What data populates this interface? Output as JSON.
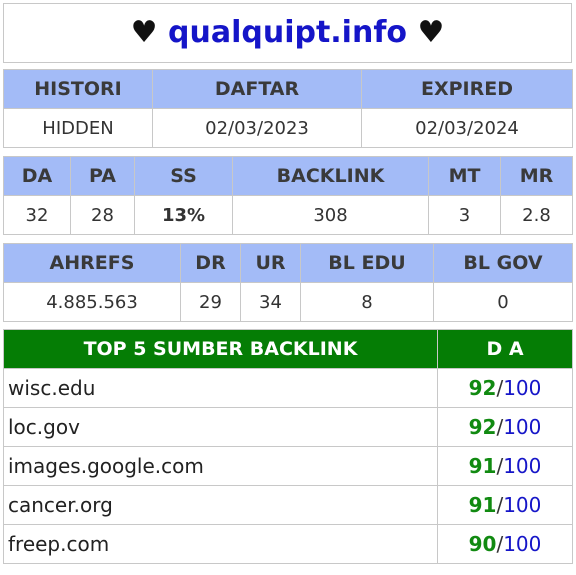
{
  "header": {
    "heart": "♥",
    "domain": "qualquipt.info"
  },
  "history": {
    "headers": [
      "HISTORI",
      "DAFTAR",
      "EXPIRED"
    ],
    "values": [
      "HIDDEN",
      "02/03/2023",
      "02/03/2024"
    ]
  },
  "metrics": {
    "headers": [
      "DA",
      "PA",
      "SS",
      "BACKLINK",
      "MT",
      "MR"
    ],
    "values": [
      "32",
      "28",
      "13%",
      "308",
      "3",
      "2.8"
    ],
    "ss_color": "#1fc7c7"
  },
  "ahrefs": {
    "headers": [
      "AHREFS",
      "DR",
      "UR",
      "BL EDU",
      "BL GOV"
    ],
    "values": [
      "4.885.563",
      "29",
      "34",
      "8",
      "0"
    ]
  },
  "backlinks": {
    "title": "TOP 5 SUMBER BACKLINK",
    "da_header": "D A",
    "separator": "/",
    "rows": [
      {
        "site": "wisc.edu",
        "da": "92",
        "max": "100"
      },
      {
        "site": "loc.gov",
        "da": "92",
        "max": "100"
      },
      {
        "site": "images.google.com",
        "da": "91",
        "max": "100"
      },
      {
        "site": "cancer.org",
        "da": "91",
        "max": "100"
      },
      {
        "site": "freep.com",
        "da": "90",
        "max": "100"
      }
    ]
  },
  "colors": {
    "header_bg": "#a3bbf7",
    "backlink_header_bg": "#057d05",
    "domain_color": "#1515c8",
    "da_color": "#118a11"
  }
}
